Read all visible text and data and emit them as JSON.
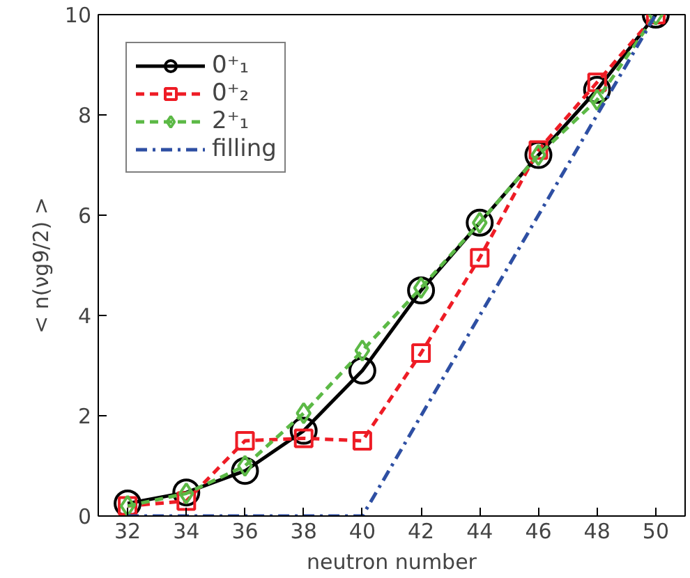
{
  "chart_data": {
    "type": "line",
    "xlabel": "neutron number",
    "ylabel": "< n(νg9/2) >",
    "x": [
      32,
      34,
      36,
      38,
      40,
      42,
      44,
      46,
      48,
      50
    ],
    "series": [
      {
        "name": "0⁺₁",
        "color": "#000000",
        "marker": "circle",
        "line_style": "solid",
        "values": [
          0.25,
          0.47,
          0.9,
          1.7,
          2.9,
          4.5,
          5.85,
          7.2,
          8.5,
          10
        ]
      },
      {
        "name": "0⁺₂",
        "color": "#ee1c25",
        "marker": "square",
        "line_style": "dashed",
        "values": [
          0.2,
          0.3,
          1.5,
          1.55,
          1.5,
          3.25,
          5.15,
          7.3,
          8.65,
          10
        ]
      },
      {
        "name": "2⁺₁",
        "color": "#5cb946",
        "marker": "diamond",
        "line_style": "dashed",
        "values": [
          0.2,
          0.45,
          1.0,
          2.05,
          3.3,
          4.55,
          5.85,
          7.2,
          8.3,
          10
        ]
      },
      {
        "name": "filling",
        "color": "#2e4fa3",
        "marker": "none",
        "line_style": "dashdot",
        "x": [
          32,
          40,
          50
        ],
        "values": [
          0,
          0,
          10
        ]
      }
    ],
    "xlim": [
      31,
      51
    ],
    "xticks": [
      32,
      34,
      36,
      38,
      40,
      42,
      44,
      46,
      48,
      50
    ],
    "ylim": [
      0,
      10
    ],
    "yticks": [
      0,
      2,
      4,
      6,
      8,
      10
    ],
    "grid": false,
    "legend": "top left"
  }
}
